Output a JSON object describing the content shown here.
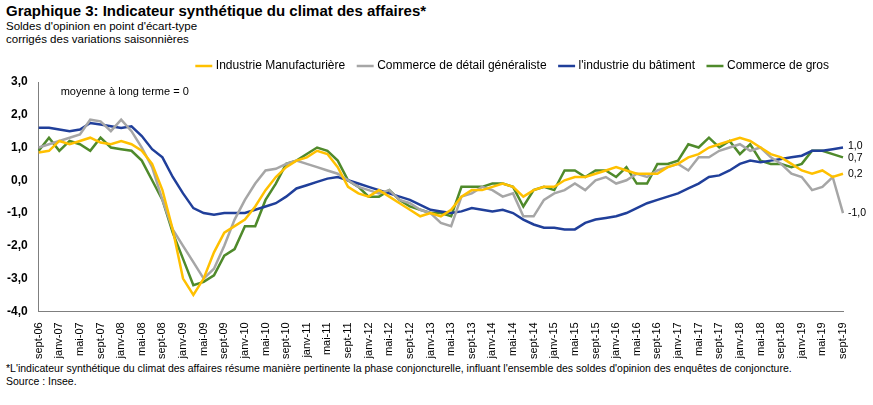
{
  "chart_data": {
    "type": "line",
    "title": "Graphique 3: Indicateur synthétique du climat des affaires*",
    "subtitle": [
      "Soldes d'opinion en point d'écart-type",
      "corrigés des variations saisonnières"
    ],
    "note": "moyenne à long terme = 0",
    "footnote": "*L'indicateur synthétique du climat des affaires résume manière pertinente la phase conjoncturelle, influant l'ensemble des soldes d'opinion des enquêtes de conjoncture.",
    "source": "Source : Insee.",
    "categories": [
      "sept-06",
      null,
      "janv-07",
      null,
      "mai-07",
      null,
      "sept-07",
      null,
      "janv-08",
      null,
      "mai-08",
      null,
      "sept-08",
      null,
      "janv-09",
      null,
      "mai-09",
      null,
      "sept-09",
      null,
      "janv-10",
      null,
      "mai-10",
      null,
      "sept-10",
      null,
      "janv-11",
      null,
      "mai-11",
      null,
      "sept-11",
      null,
      "janv-12",
      null,
      "mai-12",
      null,
      "sept-12",
      null,
      "janv-13",
      null,
      "mai-13",
      null,
      "sept-13",
      null,
      "janv-14",
      null,
      "mai-14",
      null,
      "sept-14",
      null,
      "janv-15",
      null,
      "mai-15",
      null,
      "sept-15",
      null,
      "janv-16",
      null,
      "mai-16",
      null,
      "sept-16",
      null,
      "janv-17",
      null,
      "mai-17",
      null,
      "sept-17",
      null,
      "janv-18",
      null,
      "mai-18",
      null,
      "sept-18",
      null,
      "janv-19",
      null,
      "mai-19",
      null,
      "sept-19"
    ],
    "series": [
      {
        "name": "Industrie Manufacturière",
        "color": "#FFC000",
        "values": [
          0.85,
          0.9,
          1.2,
          1.1,
          1.2,
          1.3,
          1.15,
          1.1,
          1.2,
          1.1,
          0.9,
          0.5,
          -0.3,
          -1.5,
          -3.0,
          -3.5,
          -3.0,
          -2.2,
          -1.6,
          -1.4,
          -1.2,
          -0.8,
          -0.3,
          0.1,
          0.4,
          0.6,
          0.7,
          0.9,
          0.8,
          0.4,
          -0.2,
          -0.4,
          -0.5,
          -0.3,
          -0.5,
          -0.7,
          -0.9,
          -1.1,
          -1.0,
          -1.1,
          -0.9,
          -0.5,
          -0.3,
          -0.3,
          -0.2,
          -0.1,
          -0.2,
          -0.5,
          -0.3,
          -0.2,
          -0.2,
          0.0,
          0.1,
          0.1,
          0.2,
          0.3,
          0.4,
          0.3,
          0.2,
          0.2,
          0.2,
          0.4,
          0.5,
          0.7,
          0.8,
          1.0,
          1.1,
          1.2,
          1.3,
          1.2,
          1.0,
          0.8,
          0.7,
          0.5,
          0.3,
          0.2,
          0.3,
          0.1,
          0.2
        ]
      },
      {
        "name": "Commerce de détail généraliste",
        "color": "#A6A6A6",
        "values": [
          1.0,
          1.1,
          1.2,
          1.3,
          1.4,
          1.85,
          1.8,
          1.5,
          1.85,
          1.5,
          1.0,
          0.4,
          -0.6,
          -1.5,
          -2.0,
          -2.5,
          -3.0,
          -2.7,
          -2.0,
          -1.2,
          -0.6,
          -0.1,
          0.3,
          0.35,
          0.5,
          0.6,
          0.5,
          0.4,
          0.3,
          0.2,
          0.0,
          -0.2,
          -0.3,
          -0.4,
          -0.3,
          -0.6,
          -0.7,
          -0.9,
          -1.0,
          -1.3,
          -1.4,
          -0.5,
          -0.4,
          -0.2,
          -0.3,
          -0.5,
          -0.4,
          -1.1,
          -1.1,
          -0.6,
          -0.4,
          -0.3,
          -0.1,
          -0.3,
          0.0,
          0.1,
          -0.1,
          0.0,
          0.2,
          0.1,
          0.3,
          0.4,
          0.5,
          0.3,
          0.7,
          0.7,
          0.9,
          1.0,
          1.1,
          0.9,
          1.0,
          0.7,
          0.5,
          0.2,
          0.1,
          -0.3,
          -0.2,
          0.1,
          -1.0
        ]
      },
      {
        "name": "l'industrie du bâtiment",
        "color": "#203F9A",
        "values": [
          1.6,
          1.6,
          1.55,
          1.5,
          1.55,
          1.75,
          1.7,
          1.65,
          1.6,
          1.65,
          1.35,
          0.95,
          0.7,
          0.1,
          -0.4,
          -0.85,
          -1.0,
          -1.05,
          -1.0,
          -1.0,
          -1.0,
          -0.9,
          -0.8,
          -0.7,
          -0.5,
          -0.25,
          -0.15,
          -0.05,
          0.05,
          0.1,
          0.0,
          -0.1,
          -0.2,
          -0.3,
          -0.4,
          -0.5,
          -0.6,
          -0.75,
          -0.9,
          -0.95,
          -1.0,
          -0.95,
          -0.85,
          -0.9,
          -0.95,
          -0.9,
          -1.0,
          -1.2,
          -1.35,
          -1.45,
          -1.45,
          -1.5,
          -1.5,
          -1.3,
          -1.2,
          -1.15,
          -1.1,
          -1.0,
          -0.85,
          -0.7,
          -0.6,
          -0.5,
          -0.4,
          -0.25,
          -0.1,
          0.1,
          0.15,
          0.3,
          0.5,
          0.6,
          0.55,
          0.6,
          0.65,
          0.7,
          0.75,
          0.9,
          0.9,
          0.95,
          1.0
        ]
      },
      {
        "name": "Commerce de gros",
        "color": "#4F8A2B",
        "values": [
          0.9,
          1.3,
          0.9,
          1.2,
          1.1,
          0.9,
          1.3,
          1.0,
          0.95,
          0.9,
          0.6,
          0.0,
          -0.6,
          -1.6,
          -2.4,
          -3.2,
          -3.1,
          -2.9,
          -2.3,
          -2.1,
          -1.4,
          -1.4,
          -0.6,
          -0.1,
          0.5,
          0.6,
          0.8,
          1.0,
          0.9,
          0.6,
          0.0,
          -0.2,
          -0.5,
          -0.5,
          -0.3,
          -0.6,
          -0.8,
          -0.9,
          -1.0,
          -1.0,
          -1.1,
          -0.2,
          -0.2,
          -0.2,
          -0.1,
          -0.1,
          -0.2,
          -0.8,
          -0.3,
          -0.2,
          -0.3,
          0.3,
          0.3,
          0.1,
          0.3,
          0.3,
          0.1,
          0.4,
          -0.1,
          -0.1,
          0.5,
          0.5,
          0.6,
          1.1,
          1.0,
          1.3,
          1.0,
          1.2,
          0.8,
          1.1,
          0.6,
          0.5,
          0.5,
          0.4,
          0.5,
          0.9,
          0.9,
          0.8,
          0.7
        ]
      }
    ],
    "annotations": [
      {
        "series": "l'industrie du bâtiment",
        "text": "1,0"
      },
      {
        "series": "Commerce de gros",
        "text": "0,7"
      },
      {
        "series": "Industrie Manufacturière",
        "text": "0,2"
      },
      {
        "series": "Commerce de détail généraliste",
        "text": "-1,0"
      }
    ],
    "ylim": [
      -4,
      3
    ],
    "yticks": [
      {
        "value": -4,
        "label": "-4,0"
      },
      {
        "value": -3,
        "label": "-3,0"
      },
      {
        "value": -2,
        "label": "-2,0"
      },
      {
        "value": -1,
        "label": "-1,0"
      },
      {
        "value": 0,
        "label": "0,0"
      },
      {
        "value": 1,
        "label": "1,0"
      },
      {
        "value": 2,
        "label": "2,0"
      },
      {
        "value": 3,
        "label": "3,0"
      }
    ],
    "grid": false,
    "legend": "top"
  }
}
